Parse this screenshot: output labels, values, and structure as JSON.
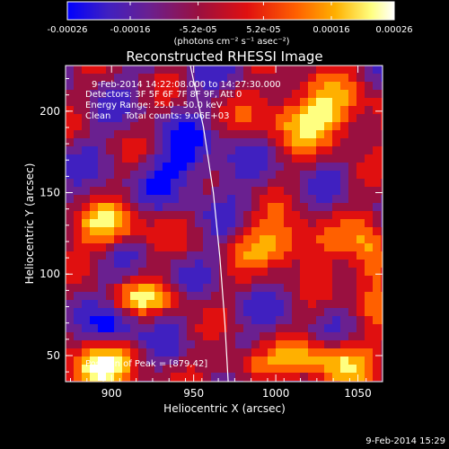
{
  "chart_data": {
    "type": "heatmap",
    "title": "Reconstructed RHESSI Image",
    "xlabel": "Heliocentric X (arcsec)",
    "ylabel": "Heliocentric Y (arcsec)",
    "xlim": [
      872,
      1065
    ],
    "ylim": [
      34,
      228
    ],
    "x_ticks": [
      "900",
      "950",
      "1000",
      "1050"
    ],
    "x_tick_values": [
      900,
      950,
      1000,
      1050
    ],
    "y_ticks": [
      "50",
      "100",
      "150",
      "200"
    ],
    "y_tick_values": [
      50,
      100,
      150,
      200
    ],
    "colorbar": {
      "ticks": [
        "-0.00026",
        "-0.00016",
        "-5.2e-05",
        "5.2e-05",
        "0.00016",
        "0.00026"
      ],
      "tick_values": [
        -0.00026,
        -0.00016,
        -5.2e-05,
        5.2e-05,
        0.00016,
        0.00026
      ],
      "range": [
        -0.00026,
        0.00026
      ],
      "unit_label": "(photons cm⁻² s⁻¹ asec⁻²)",
      "colors": [
        "#0000ff",
        "#4020c0",
        "#6a2090",
        "#9a1040",
        "#e01010",
        "#ff6000",
        "#ffb000",
        "#ffff80",
        "#ffffff"
      ]
    },
    "annotations": {
      "time_range": "9-Feb-2014 14:22:08.000 to 14:27:30.000",
      "detectors": "Detectors: 3F 5F 6F 7F 8F 9F, Att 0",
      "energy": "Energy Range: 25.0 - 50.0 keV",
      "clean": "Clean     Total counts: 9.06E+03",
      "peak": "Position of Peak = [879,42]"
    },
    "limb_curve": [
      [
        948,
        228
      ],
      [
        956,
        190
      ],
      [
        962,
        150
      ],
      [
        966,
        110
      ],
      [
        969,
        70
      ],
      [
        971,
        34
      ]
    ],
    "peak_position": [
      879,
      42
    ]
  },
  "timestamp": "9-Feb-2014 15:29"
}
